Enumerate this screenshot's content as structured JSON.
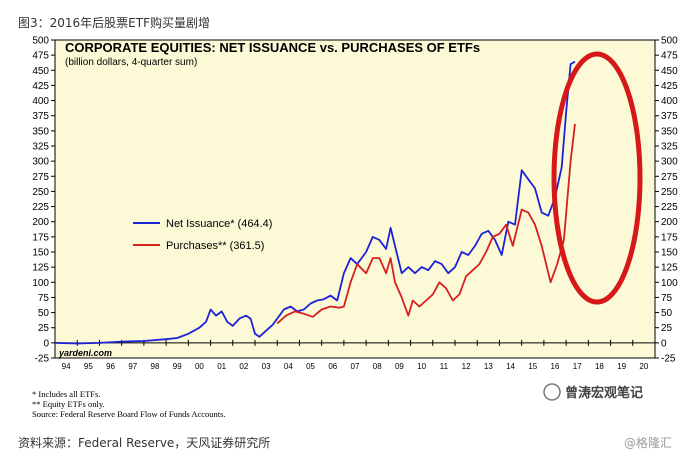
{
  "caption": "图3：2016年后股票ETF购买量剧增",
  "source_line": "资料来源：Federal Reserve，天风证券研究所",
  "watermark": "@格隆汇",
  "brand_text": "曾涛宏观笔记",
  "footnotes": [
    "*   Includes all ETFs.",
    "**  Equity ETFs only.",
    "      Source: Federal Reserve Board Flow of Funds Accounts."
  ],
  "credit": "yardeni.com",
  "colors": {
    "net_issuance": "#1e22d6",
    "purchases": "#d62020",
    "highlight_ellipse": "#d61818",
    "plot_bg": "#fbf9d6"
  },
  "chart_data": {
    "type": "line",
    "title": "CORPORATE EQUITIES: NET ISSUANCE vs. PURCHASES OF ETFs",
    "subtitle": "(billion dollars, 4-quarter sum)",
    "xlabel": "",
    "ylabel": "",
    "ylim": [
      -25,
      500
    ],
    "yticks": [
      -25,
      0,
      25,
      50,
      75,
      100,
      125,
      150,
      175,
      200,
      225,
      250,
      275,
      300,
      325,
      350,
      375,
      400,
      425,
      450,
      475,
      500
    ],
    "xlim": [
      1994,
      2021
    ],
    "xtick_labels": [
      "94",
      "95",
      "96",
      "97",
      "98",
      "99",
      "00",
      "01",
      "02",
      "03",
      "04",
      "05",
      "06",
      "07",
      "08",
      "09",
      "10",
      "11",
      "12",
      "13",
      "14",
      "15",
      "16",
      "17",
      "18",
      "19",
      "20"
    ],
    "grid": false,
    "legend_position": "center-left",
    "series": [
      {
        "name": "Net Issuance*",
        "legend_label": "Net Issuance* (464.4)",
        "color": "#1e22d6",
        "x": [
          1994.0,
          1995.0,
          1996.0,
          1997.0,
          1998.0,
          1999.0,
          1999.5,
          2000.0,
          2000.5,
          2000.8,
          2001.0,
          2001.25,
          2001.5,
          2001.75,
          2002.0,
          2002.3,
          2002.6,
          2002.8,
          2003.0,
          2003.2,
          2003.5,
          2003.8,
          2004.0,
          2004.3,
          2004.6,
          2004.9,
          2005.2,
          2005.5,
          2005.8,
          2006.1,
          2006.4,
          2006.7,
          2007.0,
          2007.3,
          2007.6,
          2008.0,
          2008.3,
          2008.6,
          2008.9,
          2009.1,
          2009.3,
          2009.6,
          2009.9,
          2010.2,
          2010.5,
          2010.8,
          2011.1,
          2011.4,
          2011.7,
          2012.0,
          2012.3,
          2012.6,
          2012.9,
          2013.2,
          2013.5,
          2013.8,
          2014.1,
          2014.4,
          2014.7,
          2015.0,
          2015.3,
          2015.6,
          2015.9,
          2016.2,
          2016.5,
          2016.8,
          2017.0,
          2017.2,
          2017.4
        ],
        "y": [
          0,
          -1,
          0,
          2,
          3,
          6,
          8,
          15,
          25,
          35,
          55,
          45,
          52,
          35,
          28,
          40,
          45,
          40,
          15,
          10,
          20,
          30,
          40,
          55,
          60,
          52,
          55,
          65,
          70,
          72,
          78,
          70,
          115,
          140,
          130,
          150,
          175,
          170,
          155,
          190,
          160,
          115,
          125,
          115,
          125,
          120,
          135,
          130,
          115,
          125,
          150,
          145,
          160,
          180,
          185,
          170,
          145,
          200,
          195,
          285,
          270,
          255,
          215,
          210,
          240,
          290,
          380,
          460,
          464.4
        ]
      },
      {
        "name": "Purchases**",
        "legend_label": "Purchases** (361.5)",
        "color": "#d62020",
        "x": [
          2004.0,
          2004.4,
          2004.8,
          2005.2,
          2005.6,
          2006.0,
          2006.4,
          2006.8,
          2007.0,
          2007.3,
          2007.6,
          2008.0,
          2008.3,
          2008.6,
          2008.9,
          2009.1,
          2009.3,
          2009.6,
          2009.9,
          2010.1,
          2010.4,
          2010.7,
          2011.0,
          2011.3,
          2011.6,
          2011.9,
          2012.2,
          2012.5,
          2012.8,
          2013.1,
          2013.4,
          2013.7,
          2014.0,
          2014.3,
          2014.6,
          2015.0,
          2015.3,
          2015.6,
          2015.9,
          2016.3,
          2016.6,
          2016.9,
          2017.2,
          2017.4
        ],
        "y": [
          32,
          45,
          52,
          48,
          43,
          55,
          60,
          58,
          60,
          100,
          130,
          115,
          140,
          140,
          115,
          140,
          100,
          75,
          45,
          70,
          60,
          70,
          80,
          100,
          90,
          70,
          80,
          110,
          120,
          130,
          150,
          175,
          180,
          195,
          160,
          220,
          215,
          195,
          160,
          100,
          130,
          170,
          300,
          361.5
        ]
      }
    ]
  }
}
